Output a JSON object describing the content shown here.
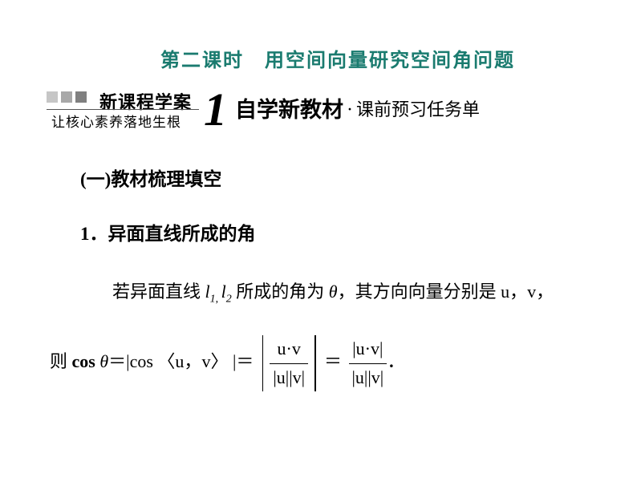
{
  "colors": {
    "title": "#1a7b6f",
    "body": "#000000",
    "stripe1": "#c6c6c6",
    "stripe2": "#a8a8a8",
    "stripe3": "#808080"
  },
  "title": "第二课时　用空间向量研究空间角问题",
  "banner": {
    "top_text": "新课程学案",
    "bottom_text": "让核心素养落地生根",
    "number": "1",
    "main": "自学新教材",
    "sub": "课前预习任务单"
  },
  "section_one": {
    "open": "(",
    "label": "一",
    "close": ")",
    "text": "教材梳理填空"
  },
  "section_two": {
    "num": "1．",
    "text": "异面直线所成的角"
  },
  "paragraph": {
    "p1_a": "若异面直线 ",
    "l1": "l",
    "s1": "1",
    "comma_sub": ", ",
    "l2": "l",
    "s2": "2",
    "p1_b": " 所成的角为 ",
    "theta": "θ",
    "p1_c": "，其方向向量分别是 ",
    "u": "u",
    "p1_d": "，",
    "v": "v",
    "p1_e": "，",
    "p2_a": "则 ",
    "cos": "cos ",
    "eq": "＝",
    "pipe": "|",
    "angle_open": "〈",
    "angle_close": "〉",
    "dot": "·",
    "period": "."
  },
  "typography": {
    "title_fontsize": 24,
    "banner_number_fontsize": 58,
    "banner_main_fontsize": 27,
    "body_fontsize": 22
  }
}
